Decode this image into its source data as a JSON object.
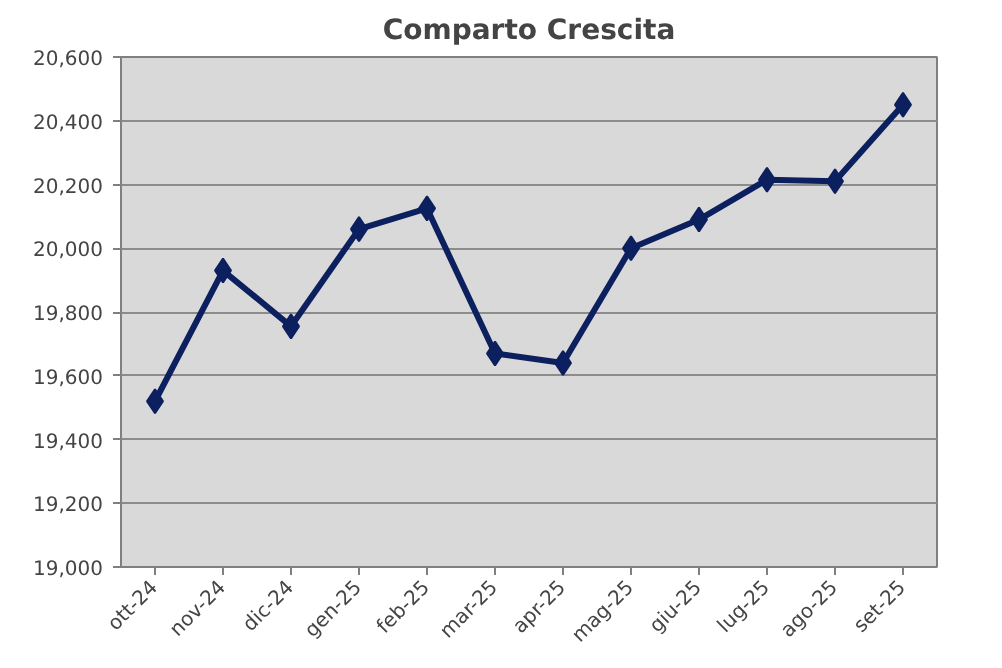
{
  "chart_data": {
    "type": "line",
    "title": "Comparto Crescita",
    "categories": [
      "ott-24",
      "nov-24",
      "dic-24",
      "gen-25",
      "feb-25",
      "mar-25",
      "apr-25",
      "mag-25",
      "giu-25",
      "lug-25",
      "ago-25",
      "set-25"
    ],
    "series": [
      {
        "color": "#0c1f5e",
        "values": [
          19520,
          19930,
          19755,
          20060,
          20125,
          19670,
          19640,
          20000,
          20090,
          20215,
          20210,
          20450
        ]
      }
    ],
    "ylim": [
      19000,
      20600
    ],
    "yticks": [
      {
        "value": 19000,
        "label": "19,000"
      },
      {
        "value": 19200,
        "label": "19,200"
      },
      {
        "value": 19400,
        "label": "19,400"
      },
      {
        "value": 19600,
        "label": "19,600"
      },
      {
        "value": 19800,
        "label": "19,800"
      },
      {
        "value": 20000,
        "label": "20,000"
      },
      {
        "value": 20200,
        "label": "20,200"
      },
      {
        "value": 20400,
        "label": "20,400"
      },
      {
        "value": 20600,
        "label": "20,600"
      }
    ],
    "grid": "y",
    "marker": "diamond",
    "line_style": "solid"
  }
}
